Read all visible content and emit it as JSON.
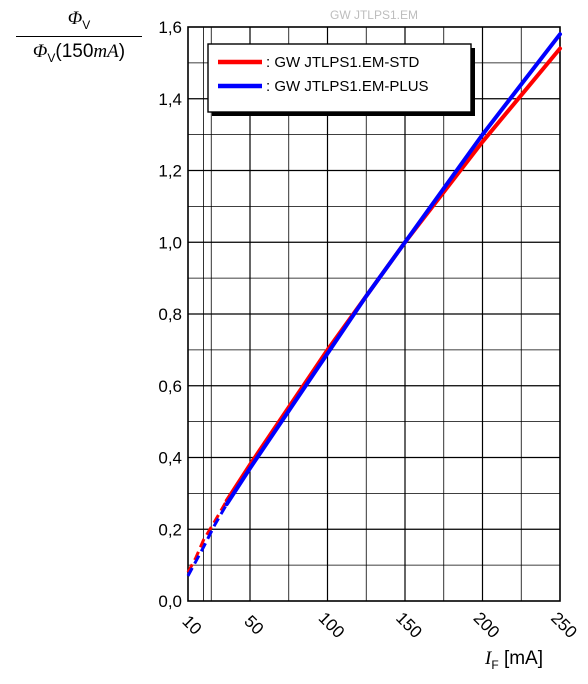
{
  "chart_data": {
    "type": "line",
    "title": "GW JTLPS1.EM",
    "ylabel": {
      "numerator_symbol": "Φ",
      "numerator_sub": "V",
      "denominator_symbol": "Φ",
      "denominator_sub": "V",
      "denominator_args": "(150",
      "denominator_unit": "mA",
      "denominator_close": ")"
    },
    "xlabel": {
      "symbol": "I",
      "sub": "F",
      "unit": " [mA]"
    },
    "xlim": [
      10,
      250
    ],
    "ylim": [
      0,
      1.6
    ],
    "x_ticks": [
      "10",
      "50",
      "100",
      "150",
      "200",
      "250"
    ],
    "y_ticks": [
      "0,0",
      "0,2",
      "0,4",
      "0,6",
      "0,8",
      "1,0",
      "1,2",
      "1,4",
      "1,6"
    ],
    "grid": true,
    "legend_position": "top-left",
    "series": [
      {
        "name": ": GW JTLPS1.EM-STD",
        "color": "#ff0000",
        "dashed_x": [
          10,
          15,
          20,
          27,
          35
        ],
        "dashed_y": [
          0.08,
          0.12,
          0.17,
          0.22,
          0.28
        ],
        "solid_x": [
          35,
          50,
          75,
          100,
          125,
          150,
          175,
          200,
          225,
          250
        ],
        "solid_y": [
          0.28,
          0.38,
          0.54,
          0.7,
          0.85,
          1.0,
          1.14,
          1.28,
          1.41,
          1.54
        ]
      },
      {
        "name": ": GW JTLPS1.EM-PLUS",
        "color": "#0000ff",
        "dashed_x": [
          10,
          15,
          20,
          27,
          35
        ],
        "dashed_y": [
          0.07,
          0.11,
          0.15,
          0.21,
          0.27
        ],
        "solid_x": [
          35,
          50,
          75,
          100,
          125,
          150,
          175,
          200,
          225,
          250
        ],
        "solid_y": [
          0.27,
          0.37,
          0.53,
          0.69,
          0.85,
          1.0,
          1.15,
          1.3,
          1.44,
          1.58
        ]
      }
    ]
  }
}
